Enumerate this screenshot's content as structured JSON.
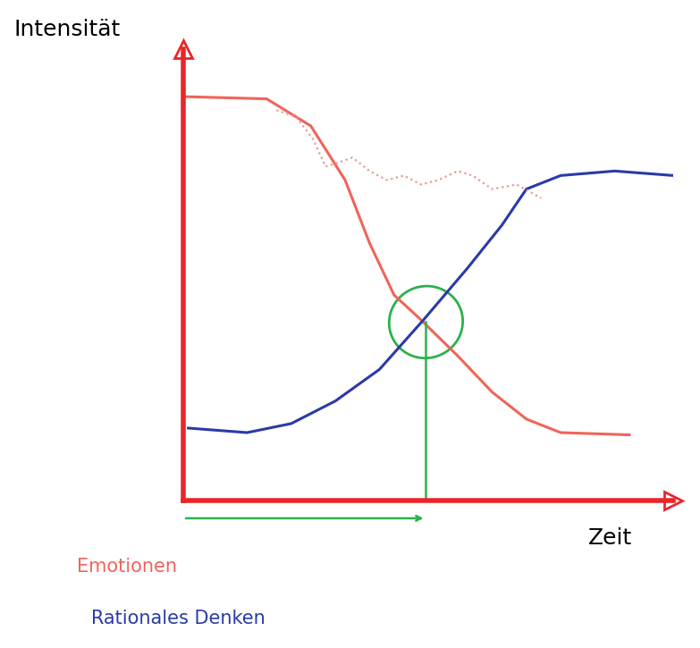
{
  "chart_data": {
    "type": "line",
    "y_label": "Intensität",
    "x_label": "Zeit",
    "xlim": [
      0,
      10
    ],
    "ylim": [
      0,
      10
    ],
    "tick_labels": false,
    "grid": false,
    "series": [
      {
        "name": "Emotionen",
        "color": "#f0645a",
        "line_style": "solid",
        "x": [
          0,
          1.7,
          2.6,
          3.3,
          3.8,
          4.3,
          4.8,
          5.6,
          6.3,
          7.0,
          7.7,
          9.1
        ],
        "values": [
          8.95,
          8.9,
          8.3,
          7.1,
          5.7,
          4.55,
          4.05,
          3.2,
          2.4,
          1.8,
          1.5,
          1.45
        ]
      },
      {
        "name": "Rationales Denken",
        "color": "#2a3aa8",
        "line_style": "solid",
        "x": [
          0.1,
          1.3,
          2.2,
          3.1,
          4.0,
          4.9,
          5.8,
          6.5,
          7.0,
          7.7,
          8.8,
          10
        ],
        "values": [
          1.6,
          1.5,
          1.7,
          2.2,
          2.9,
          4.0,
          5.15,
          6.1,
          6.9,
          7.2,
          7.3,
          7.2
        ]
      },
      {
        "color": "#e89a90",
        "line_style": "dotted",
        "x": [
          1.9,
          2.3,
          2.65,
          2.9,
          3.2,
          3.45,
          3.8,
          4.15,
          4.5,
          4.85,
          5.2,
          5.6,
          5.9,
          6.3,
          6.8,
          7.3
        ],
        "values": [
          8.65,
          8.5,
          8.0,
          7.4,
          7.5,
          7.6,
          7.3,
          7.1,
          7.2,
          7.0,
          7.1,
          7.3,
          7.2,
          6.9,
          7.0,
          6.7
        ]
      }
    ],
    "intersection": {
      "x": 4.95,
      "y": 3.95
    }
  }
}
